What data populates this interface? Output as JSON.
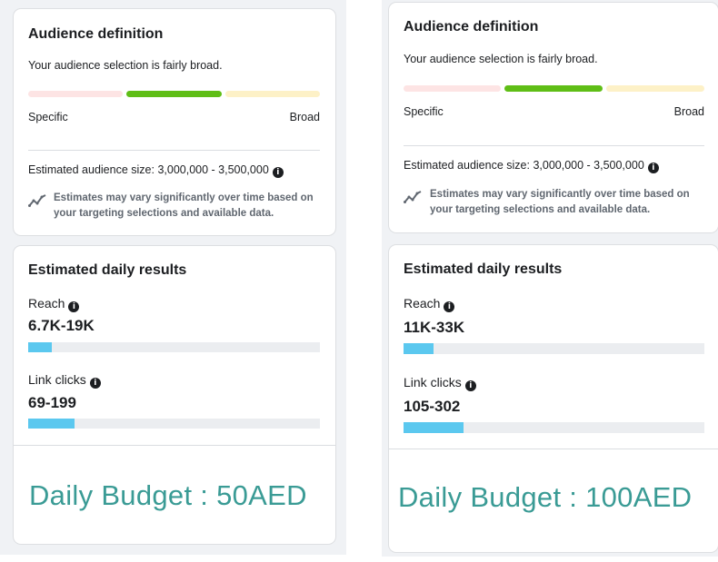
{
  "left": {
    "audience": {
      "title": "Audience definition",
      "subtitle": "Your audience selection is fairly broad.",
      "specific_label": "Specific",
      "broad_label": "Broad",
      "size_text": "Estimated audience size: 3,000,000 - 3,500,000",
      "note": "Estimates may vary significantly over time based on your targeting selections and available data."
    },
    "daily": {
      "title": "Estimated daily results",
      "reach_label": "Reach",
      "reach_value": "6.7K-19K",
      "reach_progress": 0.08,
      "clicks_label": "Link clicks",
      "clicks_value": "69-199",
      "clicks_progress": 0.16,
      "budget": "Daily Budget : 50AED"
    }
  },
  "right": {
    "audience": {
      "title": "Audience definition",
      "subtitle": "Your audience selection is fairly broad.",
      "specific_label": "Specific",
      "broad_label": "Broad",
      "size_text": "Estimated audience size: 3,000,000 - 3,500,000",
      "note": "Estimates may vary significantly over time based on your targeting selections and available data."
    },
    "daily": {
      "title": "Estimated daily results",
      "reach_label": "Reach",
      "reach_value": "11K-33K",
      "reach_progress": 0.1,
      "clicks_label": "Link clicks",
      "clicks_value": "105-302",
      "clicks_progress": 0.2,
      "budget": "Daily Budget : 100AED"
    }
  },
  "icons": {
    "info": "info-icon",
    "trend": "trend-line-icon"
  },
  "colors": {
    "green_segment": "#5fbe16",
    "progress_fill": "#5bc8ef",
    "budget_text": "#3a9b95"
  }
}
